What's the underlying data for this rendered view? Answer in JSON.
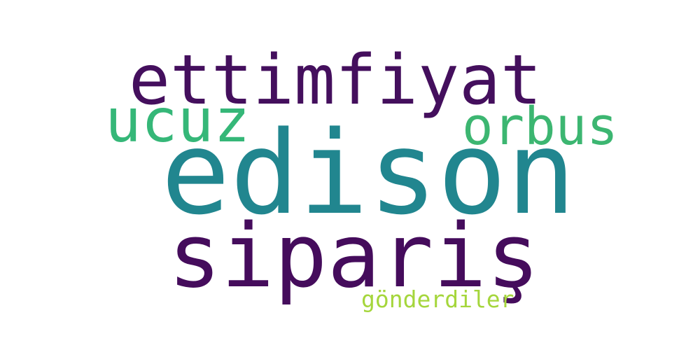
{
  "word_cloud": {
    "words": [
      {
        "text": "edison",
        "color": "#21868f"
      },
      {
        "text": "sipariş",
        "color": "#450c5c"
      },
      {
        "text": "ettimfiyat",
        "color": "#440f5d"
      },
      {
        "text": "ucuz",
        "color": "#35b778"
      },
      {
        "text": "orbus",
        "color": "#3cb671"
      },
      {
        "text": "gönderdiler",
        "color": "#a5d63c"
      }
    ]
  }
}
